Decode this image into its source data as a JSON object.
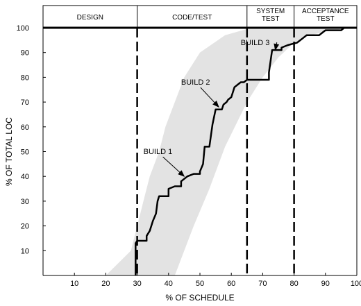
{
  "chart_data": {
    "type": "line",
    "title": "",
    "xlabel": "% OF SCHEDULE",
    "ylabel": "% OF TOTAL LOC",
    "xlim": [
      0,
      100
    ],
    "ylim": [
      0,
      100
    ],
    "x_ticks": [
      10,
      20,
      30,
      40,
      50,
      60,
      70,
      80,
      90,
      100
    ],
    "y_ticks": [
      10,
      20,
      30,
      40,
      50,
      60,
      70,
      80,
      90,
      100
    ],
    "x_tick_labels": [
      "10",
      "20",
      "30",
      "40",
      "50",
      "60",
      "70",
      "80",
      "90",
      "100"
    ],
    "y_tick_labels": [
      "10",
      "20",
      "30",
      "40",
      "50",
      "60",
      "70",
      "80",
      "90",
      "100"
    ],
    "grid": false,
    "phases": [
      {
        "start": 0,
        "end": 30,
        "label_lines": [
          "DESIGN"
        ]
      },
      {
        "start": 30,
        "end": 65,
        "label_lines": [
          "CODE/TEST"
        ]
      },
      {
        "start": 65,
        "end": 80,
        "label_lines": [
          "SYSTEM",
          "TEST"
        ]
      },
      {
        "start": 80,
        "end": 100,
        "label_lines": [
          "ACCEPTANCE",
          "TEST"
        ]
      }
    ],
    "phase_boundaries": [
      30,
      65,
      80
    ],
    "band": {
      "upper": [
        [
          20,
          0
        ],
        [
          28,
          10
        ],
        [
          30,
          20
        ],
        [
          32,
          30
        ],
        [
          34,
          40
        ],
        [
          37,
          50
        ],
        [
          39,
          60
        ],
        [
          42,
          70
        ],
        [
          45,
          80
        ],
        [
          50,
          90
        ],
        [
          58,
          97
        ],
        [
          65,
          99.5
        ],
        [
          70,
          100
        ],
        [
          98,
          100
        ]
      ],
      "lower": [
        [
          98,
          100
        ],
        [
          92,
          99
        ],
        [
          85,
          97
        ],
        [
          80,
          94
        ],
        [
          75,
          88
        ],
        [
          70,
          80
        ],
        [
          65,
          70
        ],
        [
          58,
          52
        ],
        [
          53,
          35
        ],
        [
          48,
          20
        ],
        [
          45,
          10
        ],
        [
          42,
          0
        ]
      ],
      "color": "#e3e3e3"
    },
    "series": [
      {
        "points": [
          [
            29.5,
            0
          ],
          [
            29.5,
            13
          ],
          [
            30,
            14
          ],
          [
            33,
            14
          ],
          [
            33,
            16
          ],
          [
            34,
            18
          ],
          [
            35,
            22
          ],
          [
            36,
            25
          ],
          [
            36.5,
            30
          ],
          [
            37,
            32
          ],
          [
            40,
            32
          ],
          [
            40,
            35
          ],
          [
            42,
            36
          ],
          [
            44,
            36
          ],
          [
            44,
            38
          ],
          [
            46,
            40
          ],
          [
            48,
            41
          ],
          [
            50,
            41
          ],
          [
            50,
            42
          ],
          [
            51,
            45
          ],
          [
            51.5,
            52
          ],
          [
            53,
            52
          ],
          [
            54,
            61
          ],
          [
            55,
            67
          ],
          [
            57,
            67
          ],
          [
            57.5,
            69
          ],
          [
            58.5,
            70
          ],
          [
            59,
            71
          ],
          [
            60,
            72
          ],
          [
            60.5,
            74
          ],
          [
            61,
            76
          ],
          [
            62,
            77
          ],
          [
            63,
            78
          ],
          [
            64,
            78
          ],
          [
            65,
            79
          ],
          [
            72,
            79
          ],
          [
            72,
            82
          ],
          [
            73,
            91
          ],
          [
            76,
            91
          ],
          [
            76,
            92
          ],
          [
            78,
            93
          ],
          [
            81,
            94
          ],
          [
            83,
            96
          ],
          [
            84,
            97
          ],
          [
            88,
            97
          ],
          [
            89,
            98
          ],
          [
            90,
            99
          ],
          [
            95,
            99
          ],
          [
            96,
            100
          ]
        ],
        "color": "#000000"
      }
    ],
    "annotations": [
      {
        "text": "BUILD 1",
        "text_x": 32,
        "text_y": 49,
        "arrow_to": [
          45,
          40
        ]
      },
      {
        "text": "BUILD 2",
        "text_x": 44,
        "text_y": 77,
        "arrow_to": [
          56,
          68
        ]
      },
      {
        "text": "BUILD 3",
        "text_x": 63,
        "text_y": 93,
        "arrow_to": [
          74,
          91
        ]
      }
    ]
  }
}
